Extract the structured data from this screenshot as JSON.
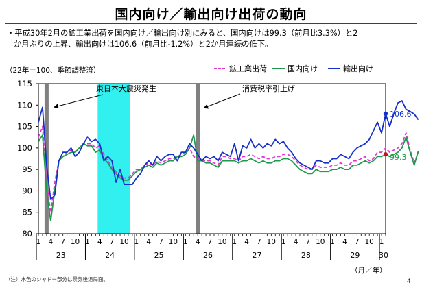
{
  "title": "国内向け／輸出向け出荷の動向",
  "summary": {
    "line1": "・平成30年2月の鉱工業出荷を国内向け／輸出向け別にみると、国内向けは99.3（前月比3.3%）と2",
    "line2": "か月ぶりの上昇、輸出向けは106.6（前月比-1.2%）と2か月連続の低下。"
  },
  "footnote": "（注）水色のシャドー部分は景気後退局面。",
  "page_number": "4",
  "chart_data": {
    "type": "line",
    "unit_label": "（22年＝100、季節調整済）",
    "x_unit_label": "（月／年）",
    "ylim": [
      80,
      115
    ],
    "y_ticks": [
      80,
      85,
      90,
      95,
      100,
      105,
      110,
      115
    ],
    "month_ticks": [
      "1",
      "4",
      "7",
      "10"
    ],
    "year_labels": [
      "23",
      "24",
      "25",
      "26",
      "27",
      "28",
      "29",
      "30"
    ],
    "x_start": "2011-01",
    "x_end": "2018-02",
    "shading": [
      {
        "label": "東日本大震災発生",
        "from": "2011-03",
        "to": "2011-03",
        "color": "#808080"
      },
      {
        "label": "",
        "from": "2012-04",
        "to": "2012-11",
        "color": "#33f0f0"
      },
      {
        "label": "消費税率引上げ",
        "from": "2014-04",
        "to": "2014-04",
        "color": "#808080"
      }
    ],
    "series": [
      {
        "name": "鉱工業出荷",
        "color": "#e535d0",
        "dash": true,
        "values": [
          102.5,
          105,
          92,
          85,
          92,
          97,
          98,
          99,
          99.5,
          99,
          100,
          101,
          101,
          101,
          100,
          100.5,
          98.5,
          97,
          95.5,
          94.5,
          93.5,
          93,
          93,
          94,
          95,
          95,
          96,
          96.5,
          96,
          97,
          96.5,
          97,
          97.5,
          97.5,
          98,
          98.5,
          99,
          100,
          98,
          97.5,
          97,
          97,
          97,
          96.5,
          96,
          98,
          98,
          97.5,
          97.5,
          97,
          98,
          98,
          98.5,
          98,
          97.5,
          98,
          97.5,
          97.5,
          98,
          98,
          98.5,
          98.5,
          98,
          97,
          96,
          95.5,
          95,
          95,
          96,
          95.5,
          95.5,
          95.5,
          96,
          96,
          96.5,
          96,
          96,
          97,
          97,
          97.5,
          98,
          97,
          97.5,
          99,
          99,
          100,
          99,
          99.5,
          100,
          101,
          103.5,
          99.5,
          96.5,
          99
        ]
      },
      {
        "name": "国内向け",
        "color": "#1f9a4a",
        "dash": false,
        "values": [
          101.5,
          103,
          90,
          83,
          90,
          97,
          98,
          98.5,
          99,
          99,
          100,
          101,
          100.5,
          100.5,
          99,
          99.5,
          97.5,
          96.5,
          95,
          94,
          93,
          92.5,
          92.5,
          93.5,
          94.5,
          95,
          95.5,
          96,
          95.5,
          96.5,
          96,
          96.5,
          97,
          97,
          98,
          98,
          98.5,
          100,
          103,
          97,
          97,
          96.5,
          96.5,
          96,
          95.5,
          97,
          97,
          97,
          97,
          96.5,
          97,
          97,
          97.5,
          97,
          96.5,
          97,
          96.5,
          96.5,
          97,
          97,
          97.5,
          97.5,
          97,
          96,
          95,
          94.5,
          94,
          94,
          95,
          94.5,
          94.5,
          94.5,
          95,
          95,
          95.5,
          95,
          95,
          96,
          96,
          96.5,
          97,
          96.5,
          97,
          98,
          98,
          98.5,
          98,
          98.5,
          99,
          100,
          102.5,
          99,
          96,
          99.3
        ]
      },
      {
        "name": "輸出向け",
        "color": "#1530c8",
        "dash": false,
        "values": [
          106,
          109.5,
          96,
          88,
          89,
          97,
          99,
          99,
          100,
          98,
          99,
          101,
          102.5,
          101.5,
          102,
          101,
          97,
          98,
          97,
          92,
          95,
          91.5,
          91.5,
          91.5,
          93,
          94,
          96,
          97,
          96,
          98,
          97,
          98,
          98.5,
          98.5,
          97,
          99,
          99,
          101,
          100,
          98.5,
          97,
          98,
          97.5,
          98,
          97,
          99,
          98.5,
          98,
          101,
          97,
          100.5,
          100,
          102,
          100,
          101,
          100,
          101,
          100.5,
          102,
          101,
          101.5,
          100,
          99,
          97.5,
          96.5,
          96,
          95.5,
          95,
          97,
          97,
          96.5,
          96.5,
          97.5,
          97.5,
          98.5,
          98,
          97.5,
          99,
          100,
          100.5,
          101,
          102,
          104,
          106,
          103.5,
          108,
          105,
          108,
          110.5,
          111,
          109,
          108.5,
          107.9,
          106.6
        ]
      }
    ],
    "end_labels": [
      "106.6",
      "99.3"
    ]
  }
}
